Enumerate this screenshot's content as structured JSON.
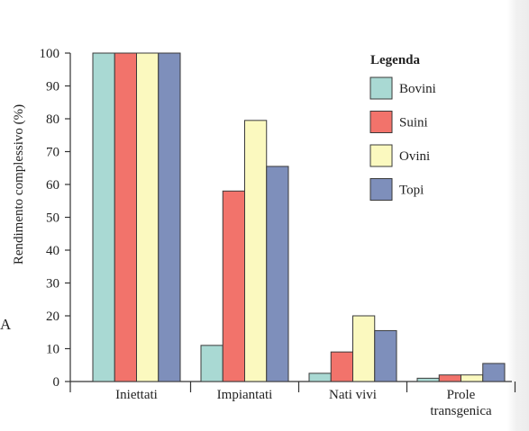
{
  "panel_label": "A",
  "chart_data": {
    "type": "bar",
    "ylabel": "Rendimento complessivo (%)",
    "xlabel": "",
    "ylim": [
      0,
      100
    ],
    "yticks": [
      0,
      10,
      20,
      30,
      40,
      50,
      60,
      70,
      80,
      90,
      100
    ],
    "grid": false,
    "legend_position": "top-right",
    "legend_title": "Legenda",
    "categories": [
      "Iniettati",
      "Impiantati",
      "Nati vivi",
      "Prole transgenica"
    ],
    "category_lines": [
      [
        "Iniettati"
      ],
      [
        "Impiantati"
      ],
      [
        "Nati vivi"
      ],
      [
        "Prole",
        "transgenica"
      ]
    ],
    "series": [
      {
        "name": "Bovini",
        "color": "#a9d9d3",
        "values": [
          100,
          11,
          2.5,
          1
        ]
      },
      {
        "name": "Suini",
        "color": "#f2736b",
        "values": [
          100,
          58,
          9,
          2
        ]
      },
      {
        "name": "Ovini",
        "color": "#fbf9bf",
        "values": [
          100,
          79.5,
          20,
          2
        ]
      },
      {
        "name": "Topi",
        "color": "#7e8fbb",
        "values": [
          100,
          65.5,
          15.5,
          5.5
        ]
      }
    ]
  }
}
